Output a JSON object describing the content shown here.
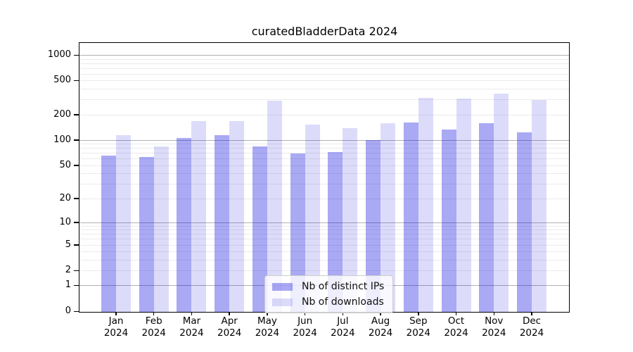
{
  "title": "curatedBladderData 2024",
  "legend": {
    "items": [
      {
        "label": "Nb of distinct IPs"
      },
      {
        "label": "Nb of downloads"
      }
    ]
  },
  "colors": {
    "bar_ips": "#a9a9f4",
    "bar_downloads": "#dcdcfa",
    "grid_major": "#b0b0b0",
    "grid_minor": "#ebebeb",
    "axis": "#000000"
  },
  "chart_data": {
    "type": "bar",
    "title": "curatedBladderData 2024",
    "x_categories": [
      "Jan 2024",
      "Feb 2024",
      "Mar 2024",
      "Apr 2024",
      "May 2024",
      "Jun 2024",
      "Jul 2024",
      "Aug 2024",
      "Sep 2024",
      "Oct 2024",
      "Nov 2024",
      "Dec 2024"
    ],
    "x_tick_line1": [
      "Jan",
      "Feb",
      "Mar",
      "Apr",
      "May",
      "Jun",
      "Jul",
      "Aug",
      "Sep",
      "Oct",
      "Nov",
      "Dec"
    ],
    "x_tick_line2": [
      "2024",
      "2024",
      "2024",
      "2024",
      "2024",
      "2024",
      "2024",
      "2024",
      "2024",
      "2024",
      "2024",
      "2024"
    ],
    "series": [
      {
        "name": "Nb of distinct IPs",
        "values": [
          66,
          64,
          108,
          117,
          85,
          71,
          74,
          102,
          165,
          136,
          162,
          126
        ]
      },
      {
        "name": "Nb of downloads",
        "values": [
          117,
          86,
          170,
          172,
          299,
          156,
          140,
          162,
          318,
          311,
          358,
          302
        ]
      }
    ],
    "y_scale": "log1p",
    "y_ticks": [
      0,
      1,
      2,
      5,
      10,
      20,
      50,
      100,
      200,
      500,
      1000
    ],
    "y_max": 1000,
    "xlabel": "",
    "ylabel": "",
    "grid": "horizontal major at powers of 10 (darker) plus minor log lines",
    "legend_position": "inside bottom-center"
  }
}
